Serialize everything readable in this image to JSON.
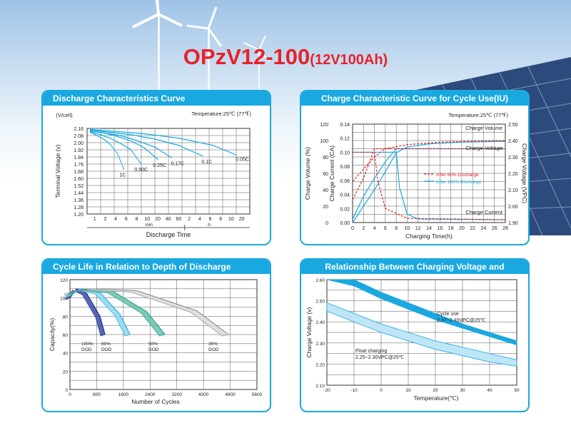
{
  "page": {
    "title_main": "OPzV12-100",
    "title_sub": "(12V100Ah)",
    "colors": {
      "accent": "#1aa8e0",
      "title": "#e8212a",
      "curve": "#1aa8e0",
      "red_dashed": "#e01f26"
    }
  },
  "chart_data": [
    {
      "id": "discharge",
      "type": "line",
      "title": "Discharge Characteristics Curve",
      "annotation": "Temperature:25℃ (77℉)",
      "ylabel": "Terminal Voltage (v)",
      "yunit": "(V/cell)",
      "xlabel": "Discharge Time",
      "yticks": [
        "2.16",
        "2.08",
        "2.00",
        "1.92",
        "1.84",
        "1.76",
        "1.68",
        "1.60",
        "1.52",
        "1.44",
        "1.36",
        "1.28",
        "1.20"
      ],
      "ylim": [
        1.2,
        2.16
      ],
      "xticks": [
        "1",
        "2",
        "4",
        "6",
        "8",
        "10",
        "20",
        "40",
        "60",
        "2",
        "4",
        "6",
        "8",
        "10",
        "20"
      ],
      "xunits": [
        "min",
        "h"
      ],
      "grid": true,
      "series": [
        {
          "name": "1C",
          "x": [
            0,
            10,
            20,
            30,
            40,
            50
          ],
          "y": [
            2.12,
            2.08,
            2.04,
            1.98,
            1.88,
            1.7
          ]
        },
        {
          "name": "0.50C",
          "x": [
            0,
            15,
            30,
            45,
            60,
            75
          ],
          "y": [
            2.12,
            2.09,
            2.05,
            1.99,
            1.92,
            1.76
          ]
        },
        {
          "name": "0.25C",
          "x": [
            0,
            20,
            40,
            60,
            80,
            100
          ],
          "y": [
            2.13,
            2.11,
            2.07,
            2.02,
            1.94,
            1.81
          ]
        },
        {
          "name": "0.17C",
          "x": [
            0,
            20,
            45,
            70,
            95,
            120
          ],
          "y": [
            2.13,
            2.11,
            2.08,
            2.02,
            1.95,
            1.83
          ]
        },
        {
          "name": "0.1C",
          "x": [
            0,
            25,
            60,
            95,
            130,
            165
          ],
          "y": [
            2.14,
            2.12,
            2.09,
            2.04,
            1.97,
            1.85
          ]
        },
        {
          "name": "0.05C",
          "x": [
            0,
            30,
            80,
            130,
            180,
            215
          ],
          "y": [
            2.15,
            2.13,
            2.1,
            2.05,
            1.97,
            1.86
          ]
        }
      ]
    },
    {
      "id": "charge",
      "type": "line",
      "title": "Charge Characteristic Curve for Cycle Use(IU)",
      "annotation": "Temperature:25℃ (77℉)",
      "xlabel": "Charging Time(h)",
      "ylabel_left1": "Charge Volume (%)",
      "ylabel_left2": "Charge Current (CA)",
      "ylabel_right": "Charge Voltage (VPC)",
      "xticks": [
        "0",
        "2",
        "4",
        "6",
        "8",
        "10",
        "12",
        "14",
        "16",
        "18",
        "20",
        "22",
        "24",
        "26",
        "28"
      ],
      "xlim": [
        0,
        28
      ],
      "yticks_volume": [
        "120",
        "100",
        "80",
        "60",
        "40",
        "20",
        "0"
      ],
      "yticks_current": [
        "0.14",
        "0.12",
        "0.10",
        "0.08",
        "0.06",
        "0.04",
        "0.02",
        "0.00"
      ],
      "yticks_voltage": [
        "2.50",
        "2.40",
        "2.30",
        "2.20",
        "2.10",
        "2.00",
        "1.90"
      ],
      "labels": {
        "volume": "Charge Volume",
        "voltage": "Charge Voltage",
        "current": "Charge Current"
      },
      "legend": [
        "After 50% Discharge",
        "After 100% Discharge"
      ],
      "grid": true,
      "series": [
        {
          "name": "After 100% Discharge - Charge Volume",
          "x": [
            0,
            2,
            4,
            6,
            8,
            10,
            14,
            20,
            28
          ],
          "y": [
            0,
            20,
            40,
            62,
            85,
            92,
            96,
            98,
            99
          ]
        },
        {
          "name": "After 50% Discharge - Charge Volume",
          "x": [
            0,
            2,
            4,
            6,
            10,
            16,
            28
          ],
          "y": [
            50,
            65,
            80,
            90,
            95,
            98,
            100
          ]
        },
        {
          "name": "After 100% Discharge - Charge Voltage",
          "x": [
            0,
            2,
            4,
            6,
            8,
            10,
            28
          ],
          "y": [
            1.92,
            2.06,
            2.17,
            2.27,
            2.35,
            2.35,
            2.35
          ]
        },
        {
          "name": "After 50% Discharge - Charge Voltage",
          "x": [
            0,
            2,
            4,
            6,
            28
          ],
          "y": [
            2.04,
            2.17,
            2.35,
            2.35,
            2.35
          ]
        },
        {
          "name": "After 100% Discharge - Charge Current",
          "x": [
            0,
            8,
            8.6,
            10,
            12,
            28
          ],
          "y": [
            0.1,
            0.1,
            0.05,
            0.012,
            0.005,
            0.004
          ]
        },
        {
          "name": "After 50% Discharge - Charge Current",
          "x": [
            0,
            4,
            4.6,
            6,
            10,
            28
          ],
          "y": [
            0.1,
            0.1,
            0.06,
            0.02,
            0.006,
            0.004
          ]
        }
      ]
    },
    {
      "id": "cycle",
      "type": "line",
      "title": "Cycle Life in Relation to Depth of Discharge",
      "xlabel": "Number of Cycles",
      "ylabel": "Capacity(%)",
      "xticks": [
        "0",
        "800",
        "1600",
        "2400",
        "3200",
        "4000",
        "4800",
        "5600"
      ],
      "xlim": [
        0,
        5600
      ],
      "yticks": [
        "120",
        "100",
        "80",
        "60",
        "40",
        "20",
        "0"
      ],
      "ylim": [
        0,
        120
      ],
      "grid": true,
      "series": [
        {
          "name": "100% DOD",
          "x": [
            0,
            200,
            500,
            900,
            1050
          ],
          "y": [
            100,
            110,
            105,
            80,
            60
          ]
        },
        {
          "name": "80% DOD",
          "x": [
            0,
            300,
            900,
            1500,
            1800
          ],
          "y": [
            102,
            110,
            106,
            82,
            60
          ]
        },
        {
          "name": "50% DOD",
          "x": [
            0,
            400,
            1300,
            2300,
            2850
          ],
          "y": [
            104,
            110,
            107,
            85,
            60
          ]
        },
        {
          "name": "30% DOD",
          "x": [
            0,
            600,
            2000,
            3800,
            4750
          ],
          "y": [
            106,
            110,
            108,
            86,
            60
          ]
        }
      ],
      "labels": [
        "100% DOD",
        "80% DOD",
        "50% DOD",
        "30% DOD"
      ]
    },
    {
      "id": "tempvolt",
      "type": "area",
      "title": "Relationship Between Charging Voltage and Temperature",
      "xlabel": "Temperature(℃)",
      "ylabel": "Charge Voltage (v)",
      "xticks": [
        "-20",
        "-10",
        "0",
        "10",
        "20",
        "30",
        "40",
        "50"
      ],
      "xlim": [
        -20,
        50
      ],
      "yticks": [
        "2.60",
        "2.50",
        "2.40",
        "2.30",
        "2.20",
        "2.10"
      ],
      "ylim": [
        2.1,
        2.6
      ],
      "grid": true,
      "series": [
        {
          "name": "Cycle use 2.37~2.40VPC@25℃",
          "x": [
            -20,
            -10,
            0,
            10,
            20,
            30,
            40,
            50
          ],
          "upper": [
            2.66,
            2.6,
            2.54,
            2.49,
            2.44,
            2.39,
            2.35,
            2.31
          ],
          "lower": [
            2.63,
            2.57,
            2.51,
            2.46,
            2.41,
            2.37,
            2.33,
            2.29
          ]
        },
        {
          "name": "Float charging 2.25~2.30VPC@25℃",
          "x": [
            -20,
            -10,
            0,
            10,
            20,
            30,
            40,
            50
          ],
          "upper": [
            2.49,
            2.44,
            2.39,
            2.35,
            2.31,
            2.28,
            2.25,
            2.22
          ],
          "lower": [
            2.45,
            2.4,
            2.35,
            2.31,
            2.27,
            2.24,
            2.21,
            2.19
          ]
        }
      ],
      "labels": {
        "cycle_line1": "Cycle use",
        "cycle_line2": "2.37~2.40VPC@25℃",
        "float_line1": "Float charging",
        "float_line2": "2.25~2.30VPC@25℃"
      }
    }
  ]
}
